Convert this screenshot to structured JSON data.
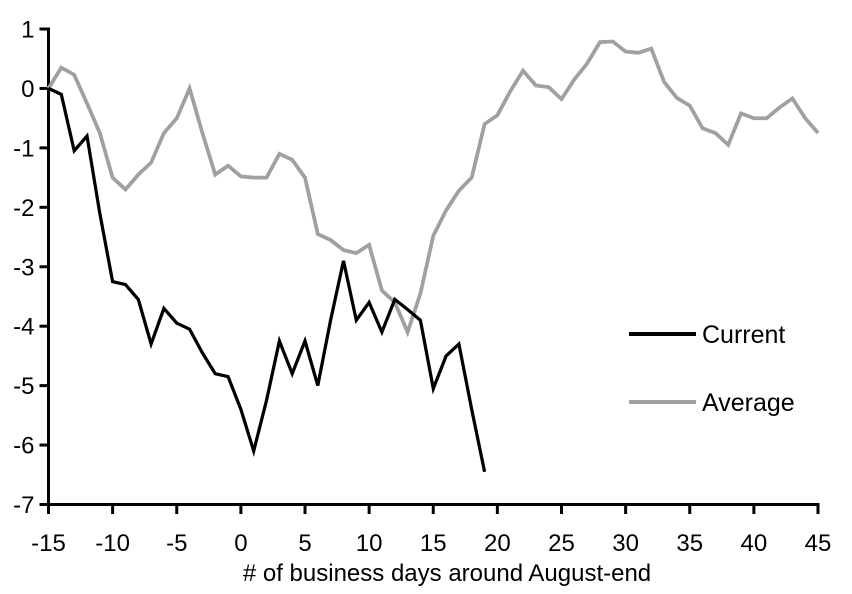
{
  "figure": {
    "background": "#ffffff",
    "text_color": "#000000"
  },
  "chart_data": {
    "type": "line",
    "title": "",
    "xlabel": "# of business days around August-end",
    "ylabel": "",
    "xlim": [
      -15,
      45
    ],
    "ylim": [
      -7,
      1
    ],
    "x_ticks": [
      -15,
      -10,
      -5,
      0,
      5,
      10,
      15,
      20,
      25,
      30,
      35,
      40,
      45
    ],
    "y_ticks": [
      1,
      0,
      -1,
      -2,
      -3,
      -4,
      -5,
      -6,
      -7
    ],
    "grid": false,
    "legend_position": "right-middle",
    "series": [
      {
        "name": "Current",
        "color": "#000000",
        "stroke_width": 3.25,
        "x": [
          -15,
          -14,
          -13,
          -12,
          -11,
          -10,
          -9,
          -8,
          -7,
          -6,
          -5,
          -4,
          -3,
          -2,
          -1,
          0,
          1,
          2,
          3,
          4,
          5,
          6,
          7,
          8,
          9,
          10,
          11,
          12,
          13,
          14,
          15,
          16,
          17,
          18,
          19
        ],
        "values": [
          0,
          -0.1,
          -1.05,
          -0.8,
          -2.1,
          -3.25,
          -3.3,
          -3.55,
          -4.3,
          -3.7,
          -3.95,
          -4.05,
          -4.45,
          -4.8,
          -4.85,
          -5.4,
          -6.1,
          -5.25,
          -4.25,
          -4.8,
          -4.25,
          -5.0,
          -3.9,
          -2.9,
          -3.9,
          -3.6,
          -4.1,
          -3.55,
          -3.72,
          -3.9,
          -5.05,
          -4.5,
          -4.3,
          -5.4,
          -6.45
        ]
      },
      {
        "name": "Average",
        "color": "#a0a0a0",
        "stroke_width": 3.75,
        "x": [
          -15,
          -14,
          -13,
          -12,
          -11,
          -10,
          -9,
          -8,
          -7,
          -6,
          -5,
          -4,
          -3,
          -2,
          -1,
          0,
          1,
          2,
          3,
          4,
          5,
          6,
          7,
          8,
          9,
          10,
          11,
          12,
          13,
          14,
          15,
          16,
          17,
          18,
          19,
          20,
          21,
          22,
          23,
          24,
          25,
          26,
          27,
          28,
          29,
          30,
          31,
          32,
          33,
          34,
          35,
          36,
          37,
          38,
          39,
          40,
          41,
          42,
          43,
          44,
          45
        ],
        "values": [
          0,
          0.35,
          0.23,
          -0.25,
          -0.75,
          -1.5,
          -1.7,
          -1.45,
          -1.25,
          -0.75,
          -0.5,
          0,
          -0.75,
          -1.45,
          -1.3,
          -1.48,
          -1.5,
          -1.5,
          -1.1,
          -1.2,
          -1.5,
          -2.45,
          -2.55,
          -2.72,
          -2.77,
          -2.63,
          -3.4,
          -3.6,
          -4.1,
          -3.45,
          -2.48,
          -2.05,
          -1.72,
          -1.5,
          -0.6,
          -0.45,
          -0.05,
          0.3,
          0.05,
          0.02,
          -0.18,
          0.15,
          0.42,
          0.78,
          0.79,
          0.62,
          0.6,
          0.67,
          0.11,
          -0.16,
          -0.29,
          -0.67,
          -0.75,
          -0.95,
          -0.42,
          -0.5,
          -0.5,
          -0.32,
          -0.17,
          -0.5,
          -0.75
        ]
      }
    ]
  },
  "legend": {
    "items": [
      {
        "label": "Current",
        "color": "#000000"
      },
      {
        "label": "Average",
        "color": "#a0a0a0"
      }
    ]
  }
}
